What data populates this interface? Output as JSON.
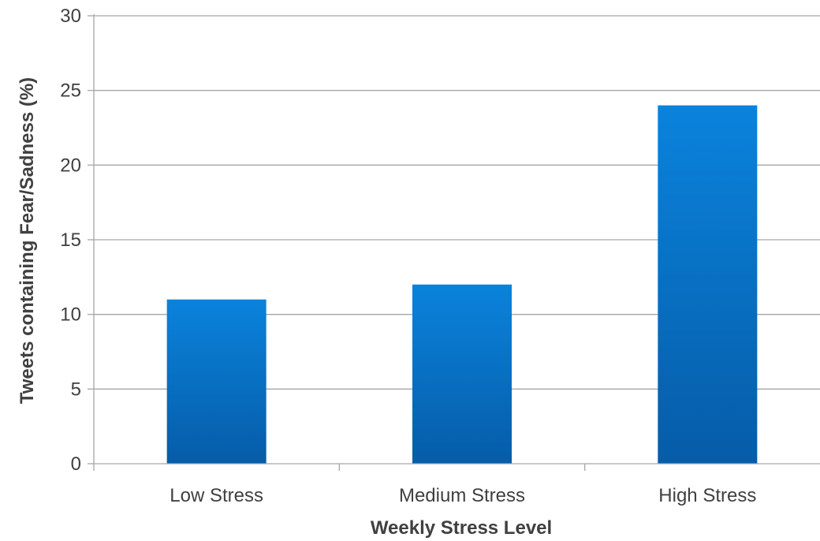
{
  "chart_data": {
    "type": "bar",
    "categories": [
      "Low Stress",
      "Medium Stress",
      "High Stress"
    ],
    "values": [
      11,
      12,
      24
    ],
    "title": "",
    "xlabel": "Weekly Stress Level",
    "ylabel": "Tweets containing Fear/Sadness (%)",
    "ylim": [
      0,
      30
    ],
    "yticks": [
      "0",
      "5",
      "10",
      "15",
      "20",
      "25",
      "30"
    ],
    "grid": true,
    "colors": {
      "bar_top": "#0a83dc",
      "bar_bottom": "#065ca8",
      "gridline": "#a6a6a6",
      "text": "#404040"
    }
  }
}
